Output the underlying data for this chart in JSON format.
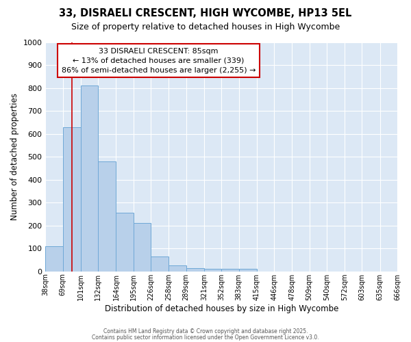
{
  "title1": "33, DISRAELI CRESCENT, HIGH WYCOMBE, HP13 5EL",
  "title2": "Size of property relative to detached houses in High Wycombe",
  "xlabel": "Distribution of detached houses by size in High Wycombe",
  "ylabel": "Number of detached properties",
  "bar_values": [
    110,
    630,
    810,
    480,
    255,
    210,
    65,
    25,
    15,
    10,
    10,
    10,
    0,
    0,
    0,
    0,
    0,
    0,
    0,
    0
  ],
  "bin_edges": [
    38,
    69,
    101,
    132,
    164,
    195,
    226,
    258,
    289,
    321,
    352,
    383,
    415,
    446,
    478,
    509,
    540,
    572,
    603,
    635,
    666
  ],
  "bar_color": "#b8d0ea",
  "bar_edge_color": "#6fa8d6",
  "axes_bg_color": "#dce8f5",
  "fig_bg_color": "#ffffff",
  "grid_color": "#ffffff",
  "red_line_x": 85,
  "annotation_title": "33 DISRAELI CRESCENT: 85sqm",
  "annotation_line1": "← 13% of detached houses are smaller (339)",
  "annotation_line2": "86% of semi-detached houses are larger (2,255) →",
  "annotation_box_color": "#ffffff",
  "annotation_border_color": "#cc0000",
  "red_line_color": "#cc0000",
  "ylim": [
    0,
    1000
  ],
  "yticks": [
    0,
    100,
    200,
    300,
    400,
    500,
    600,
    700,
    800,
    900,
    1000
  ],
  "footer1": "Contains HM Land Registry data © Crown copyright and database right 2025.",
  "footer2": "Contains public sector information licensed under the Open Government Licence v3.0."
}
